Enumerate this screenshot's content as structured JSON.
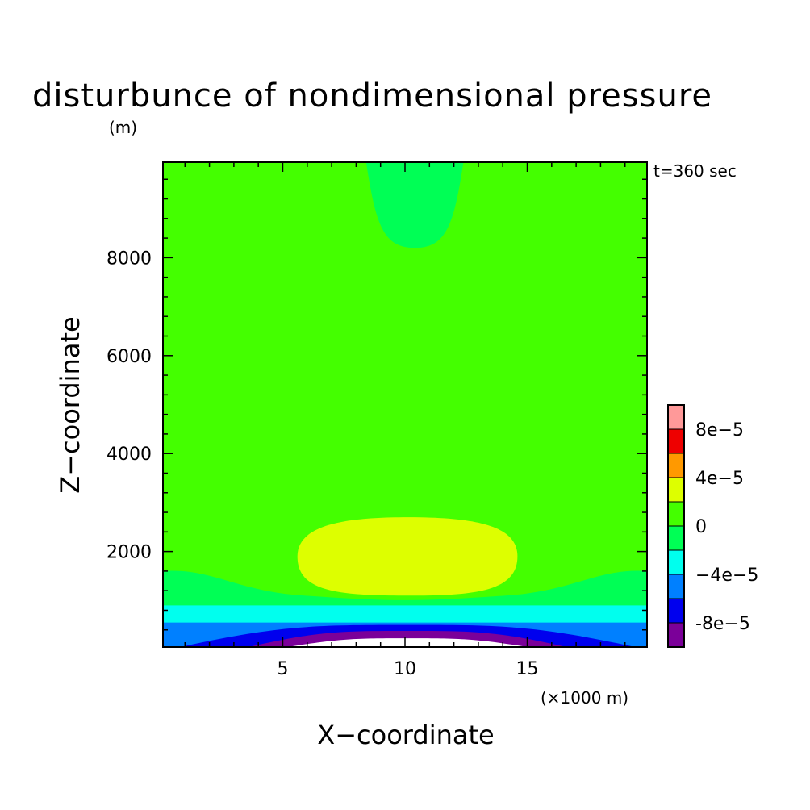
{
  "chart_data": {
    "type": "contour",
    "title": "disturbunce of nondimensional pressure",
    "ylabel_unit": "(m)",
    "xlabel": "X−coordinate",
    "ylabel": "Z−coordinate",
    "x_unit": "(×1000 m)",
    "time_label": "t=360 sec",
    "xlim": [
      0.1,
      19.9
    ],
    "ylim": [
      50,
      9950
    ],
    "x_ticks": [
      5,
      10,
      15
    ],
    "x_tick_labels": [
      "5",
      "10",
      "15"
    ],
    "y_ticks": [
      2000,
      4000,
      6000,
      8000
    ],
    "y_tick_labels": [
      "2000",
      "4000",
      "6000",
      "8000"
    ],
    "grid": false,
    "legend_position": "right",
    "levels": [
      {
        "min": -0.0001,
        "max": -8e-05,
        "color": "#7b0099"
      },
      {
        "min": -8e-05,
        "max": -6e-05,
        "color": "#0000ee"
      },
      {
        "min": -6e-05,
        "max": -4e-05,
        "color": "#0080ff"
      },
      {
        "min": -4e-05,
        "max": -2e-05,
        "color": "#00ffee"
      },
      {
        "min": -2e-05,
        "max": 0,
        "color": "#00ff55"
      },
      {
        "min": 0,
        "max": 2e-05,
        "color": "#44ff00"
      },
      {
        "min": 2e-05,
        "max": 4e-05,
        "color": "#ddff00"
      },
      {
        "min": 4e-05,
        "max": 6e-05,
        "color": "#ff9900"
      },
      {
        "min": 6e-05,
        "max": 8e-05,
        "color": "#ee0000"
      },
      {
        "min": 8e-05,
        "max": 0.0001,
        "color": "#ff9999"
      }
    ],
    "colorbar_labels": [
      "-8e−5",
      "−4e−5",
      "0",
      "4e−5",
      "8e−5"
    ],
    "regions": [
      {
        "name": "background",
        "level": 0,
        "color": "#44ff00"
      },
      {
        "name": "upper-lobe",
        "level": -2e-05,
        "color": "#00ff55",
        "x": [
          8.4,
          12.4
        ],
        "y_bottom": 8200
      },
      {
        "name": "yellow-bubble",
        "level": 2e-05,
        "color": "#ddff00",
        "x": [
          5.6,
          14.6
        ],
        "y": [
          1100,
          2700
        ]
      },
      {
        "name": "lower-band",
        "level": -2e-05,
        "color": "#00ff55",
        "y_top": 1600
      },
      {
        "name": "cyan-band",
        "level": -4e-05,
        "color": "#00ffee",
        "y_top": 900
      },
      {
        "name": "blue-band",
        "level": -6e-05,
        "color": "#0080ff",
        "y_top": 550
      },
      {
        "name": "darkblue-dome",
        "level": -8e-05,
        "color": "#0000ee",
        "x": [
          0.8,
          19.4
        ],
        "y_top": 500
      },
      {
        "name": "purple-dome",
        "level": -0.0001,
        "color": "#7b0099",
        "x": [
          3.6,
          16.6
        ],
        "y_top": 380
      },
      {
        "name": "white-dome",
        "level": -0.00012,
        "color": "#ffffff",
        "x": [
          5.2,
          15.0
        ],
        "y_top": 230
      }
    ]
  }
}
